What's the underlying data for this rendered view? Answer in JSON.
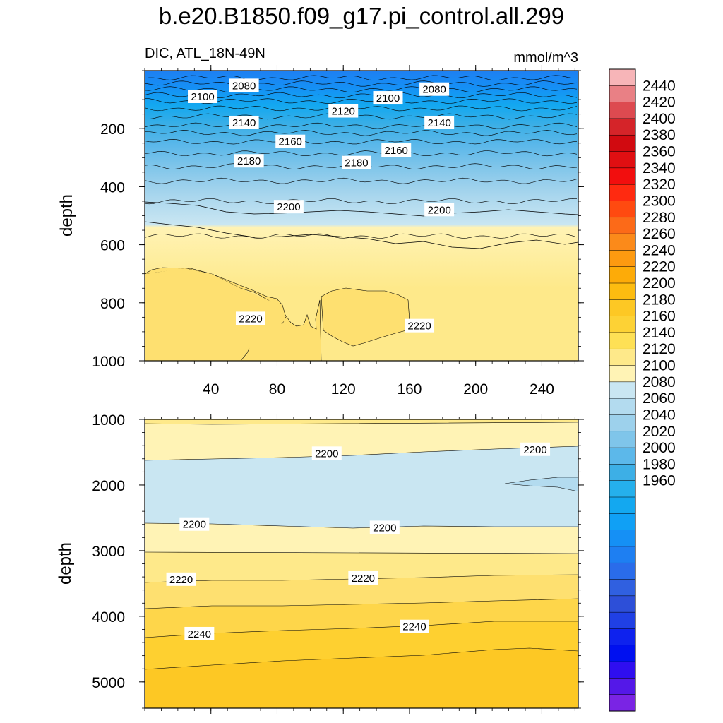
{
  "title": "b.e20.B1850.f09_g17.pi_control.all.299",
  "subtitle_left": "DIC, ATL_18N-49N",
  "subtitle_right": "mmol/m^3",
  "chart_data": [
    {
      "type": "heatmap",
      "panel": "upper",
      "ylabel": "depth",
      "xlabel": "",
      "xlim": [
        0,
        262
      ],
      "ylim": [
        1000,
        0
      ],
      "y_reversed": true,
      "x_ticks": [
        40,
        80,
        120,
        160,
        200,
        240
      ],
      "y_ticks": [
        200,
        400,
        600,
        800,
        1000
      ],
      "levels": [
        2080,
        2090,
        2100,
        2110,
        2120,
        2130,
        2140,
        2150,
        2160,
        2170,
        2180,
        2190,
        2200,
        2210,
        2220
      ],
      "contour_depths": [
        25,
        45,
        65,
        85,
        105,
        130,
        158,
        190,
        215,
        245,
        285,
        330,
        380,
        450,
        570
      ],
      "contour_labels": [
        {
          "text": "2080",
          "x": 60,
          "y": 52
        },
        {
          "text": "2100",
          "x": 35,
          "y": 90
        },
        {
          "text": "2100",
          "x": 147,
          "y": 95
        },
        {
          "text": "2080",
          "x": 175,
          "y": 65
        },
        {
          "text": "2120",
          "x": 120,
          "y": 140
        },
        {
          "text": "2140",
          "x": 60,
          "y": 180
        },
        {
          "text": "2140",
          "x": 178,
          "y": 180
        },
        {
          "text": "2160",
          "x": 88,
          "y": 245
        },
        {
          "text": "2160",
          "x": 152,
          "y": 275
        },
        {
          "text": "2180",
          "x": 63,
          "y": 312
        },
        {
          "text": "2180",
          "x": 128,
          "y": 318
        },
        {
          "text": "2200",
          "x": 87,
          "y": 470
        },
        {
          "text": "2200",
          "x": 178,
          "y": 480
        },
        {
          "text": "2220",
          "x": 64,
          "y": 855
        },
        {
          "text": "2220",
          "x": 166,
          "y": 880
        }
      ]
    },
    {
      "type": "heatmap",
      "panel": "lower",
      "ylabel": "depth",
      "xlabel": "",
      "xlim": [
        0,
        262
      ],
      "ylim": [
        5400,
        1000
      ],
      "y_reversed": true,
      "y_ticks": [
        1000,
        2000,
        3000,
        4000,
        5000
      ],
      "levels": [
        2200,
        2210,
        2220,
        2230,
        2240,
        2250
      ],
      "contour_labels": [
        {
          "text": "2200",
          "x": 110,
          "y": 1520
        },
        {
          "text": "2200",
          "x": 236,
          "y": 1460
        },
        {
          "text": "2200",
          "x": 30,
          "y": 2600
        },
        {
          "text": "2200",
          "x": 145,
          "y": 2650
        },
        {
          "text": "2220",
          "x": 22,
          "y": 3440
        },
        {
          "text": "2220",
          "x": 132,
          "y": 3420
        },
        {
          "text": "2240",
          "x": 33,
          "y": 4270
        },
        {
          "text": "2240",
          "x": 163,
          "y": 4160
        }
      ]
    }
  ],
  "colorbar": {
    "labels": [
      "2440",
      "2420",
      "2400",
      "2380",
      "2360",
      "2340",
      "2320",
      "2300",
      "2280",
      "2260",
      "2240",
      "2220",
      "2200",
      "2180",
      "2160",
      "2140",
      "2120",
      "2100",
      "2080",
      "2060",
      "2040",
      "2020",
      "2000",
      "1980",
      "1960"
    ],
    "colors": [
      "#f7b5b8",
      "#e98085",
      "#dd4a50",
      "#d52429",
      "#d10a10",
      "#e00f12",
      "#f20e0e",
      "#ff2a10",
      "#ff4a10",
      "#fc6a18",
      "#fb8a1a",
      "#fd9a10",
      "#fdab08",
      "#fdbc10",
      "#fdc824",
      "#fdd235",
      "#fee055",
      "#fee98a",
      "#fff3b5",
      "#c9e6f2",
      "#b3dbef",
      "#9dd1ec",
      "#7fc5ea",
      "#5cb8ea",
      "#3dafe6",
      "#25b0ec",
      "#13a8f0",
      "#10a0f5",
      "#1590f5",
      "#1e7ff2",
      "#2a6cea",
      "#3060e0",
      "#2d4fd8",
      "#2040e4",
      "#0e22ee",
      "#0010f0",
      "#2f0ef0",
      "#5418e8",
      "#7a24e4"
    ]
  }
}
